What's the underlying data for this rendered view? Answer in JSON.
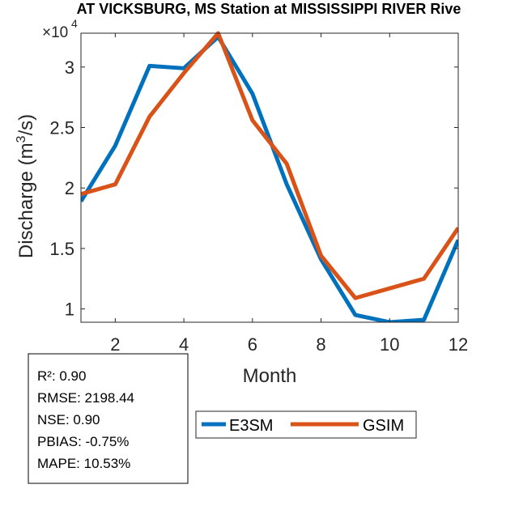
{
  "chart_data": {
    "type": "line",
    "title": "AT VICKSBURG, MS  Station at  MISSISSIPPI RIVER  Rive",
    "xlabel": "Month",
    "ylabel": "Discharge (m³/s)",
    "ylabel_base": "Discharge (m",
    "ylabel_sup": "3",
    "ylabel_tail": "/s)",
    "y_multiplier": "×10",
    "y_multiplier_exp": "4",
    "xlim": [
      1,
      12
    ],
    "ylim": [
      0.89,
      3.28
    ],
    "xticks": [
      "2",
      "4",
      "6",
      "8",
      "10",
      "12"
    ],
    "yticks": [
      "1",
      "1.5",
      "2",
      "2.5",
      "3"
    ],
    "grid": false,
    "x": [
      1,
      2,
      3,
      4,
      5,
      6,
      7,
      8,
      9,
      10,
      11,
      12
    ],
    "series": [
      {
        "name": "E3SM",
        "color": "#0072BD",
        "values": [
          1.89,
          2.35,
          3.01,
          2.99,
          3.25,
          2.78,
          2.03,
          1.41,
          0.95,
          0.89,
          0.91,
          1.57
        ]
      },
      {
        "name": "GSIM",
        "color": "#D95319",
        "values": [
          1.95,
          2.03,
          2.59,
          2.95,
          3.28,
          2.56,
          2.2,
          1.44,
          1.09,
          1.17,
          1.25,
          1.67
        ]
      }
    ],
    "legend_placement": "bottom",
    "stats": [
      "R²: 0.90",
      "RMSE: 2198.44",
      "NSE: 0.90",
      "PBIAS: -0.75%",
      "MAPE: 10.53%"
    ]
  }
}
